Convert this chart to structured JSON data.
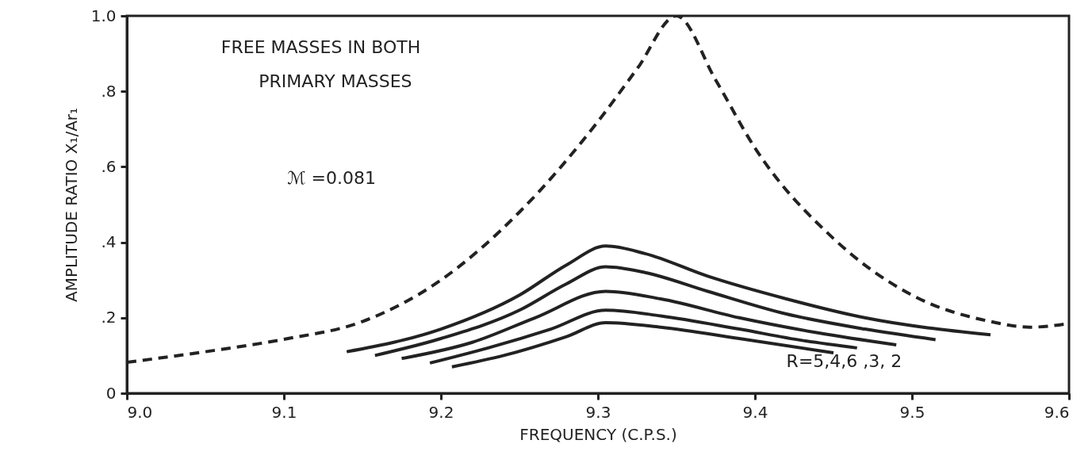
{
  "chart_data": {
    "type": "line",
    "xlabel": "FREQUENCY (C.P.S.)",
    "ylabel": "AMPLITUDE RATIO  X₁/Ar₁",
    "xlim": [
      9.0,
      9.6
    ],
    "ylim": [
      0,
      1.0
    ],
    "xticks": [
      {
        "value": 9.0,
        "label": "9.0"
      },
      {
        "value": 9.1,
        "label": "9.1"
      },
      {
        "value": 9.2,
        "label": "9.2"
      },
      {
        "value": 9.3,
        "label": "9.3"
      },
      {
        "value": 9.4,
        "label": "9.4"
      },
      {
        "value": 9.5,
        "label": "9.5"
      },
      {
        "value": 9.6,
        "label": "9.6"
      }
    ],
    "yticks": [
      0,
      {
        "value": 0.2,
        "label": ".2"
      },
      {
        "value": 0.4,
        "label": ".4"
      },
      {
        "value": 0.6,
        "label": ".6"
      },
      {
        "value": 0.8,
        "label": ".8"
      },
      {
        "value": 1.0,
        "label": "1.0"
      }
    ],
    "grid": false,
    "marker": "none",
    "annotations": [
      "FREE  MASSES IN BOTH",
      "PRIMARY  MASSES",
      "ℳ =0.081",
      "R=5,4,6 ,3, 2"
    ],
    "series": [
      {
        "color": "#222222",
        "line_style": "dashed",
        "x": [
          9.0,
          9.05,
          9.1,
          9.15,
          9.2,
          9.25,
          9.3,
          9.325,
          9.35,
          9.375,
          9.4,
          9.45,
          9.5,
          9.55,
          9.575,
          9.6
        ],
        "values": [
          0.082,
          0.11,
          0.143,
          0.19,
          0.3,
          0.48,
          0.72,
          0.86,
          1.0,
          0.83,
          0.65,
          0.41,
          0.26,
          0.19,
          0.175,
          0.185
        ]
      },
      {
        "color": "#222222",
        "line_style": "solid",
        "x": [
          9.14,
          9.2,
          9.25,
          9.28,
          9.305,
          9.33,
          9.37,
          9.42,
          9.47,
          9.55
        ],
        "values": [
          0.11,
          0.17,
          0.26,
          0.34,
          0.39,
          0.37,
          0.31,
          0.25,
          0.2,
          0.155
        ]
      },
      {
        "color": "#222222",
        "line_style": "solid",
        "x": [
          9.158,
          9.2,
          9.25,
          9.28,
          9.305,
          9.33,
          9.37,
          9.42,
          9.47,
          9.515
        ],
        "values": [
          0.1,
          0.145,
          0.22,
          0.29,
          0.335,
          0.32,
          0.27,
          0.21,
          0.17,
          0.142
        ]
      },
      {
        "color": "#222222",
        "line_style": "solid",
        "x": [
          9.175,
          9.22,
          9.26,
          9.305,
          9.34,
          9.39,
          9.44,
          9.49
        ],
        "values": [
          0.092,
          0.135,
          0.2,
          0.27,
          0.25,
          0.2,
          0.16,
          0.128
        ]
      },
      {
        "color": "#222222",
        "line_style": "solid",
        "x": [
          9.193,
          9.23,
          9.27,
          9.305,
          9.34,
          9.39,
          9.43,
          9.465
        ],
        "values": [
          0.08,
          0.12,
          0.17,
          0.22,
          0.205,
          0.17,
          0.14,
          0.12
        ]
      },
      {
        "color": "#222222",
        "line_style": "solid",
        "x": [
          9.207,
          9.24,
          9.28,
          9.305,
          9.34,
          9.39,
          9.45
        ],
        "values": [
          0.07,
          0.1,
          0.15,
          0.187,
          0.175,
          0.145,
          0.107
        ]
      }
    ]
  }
}
